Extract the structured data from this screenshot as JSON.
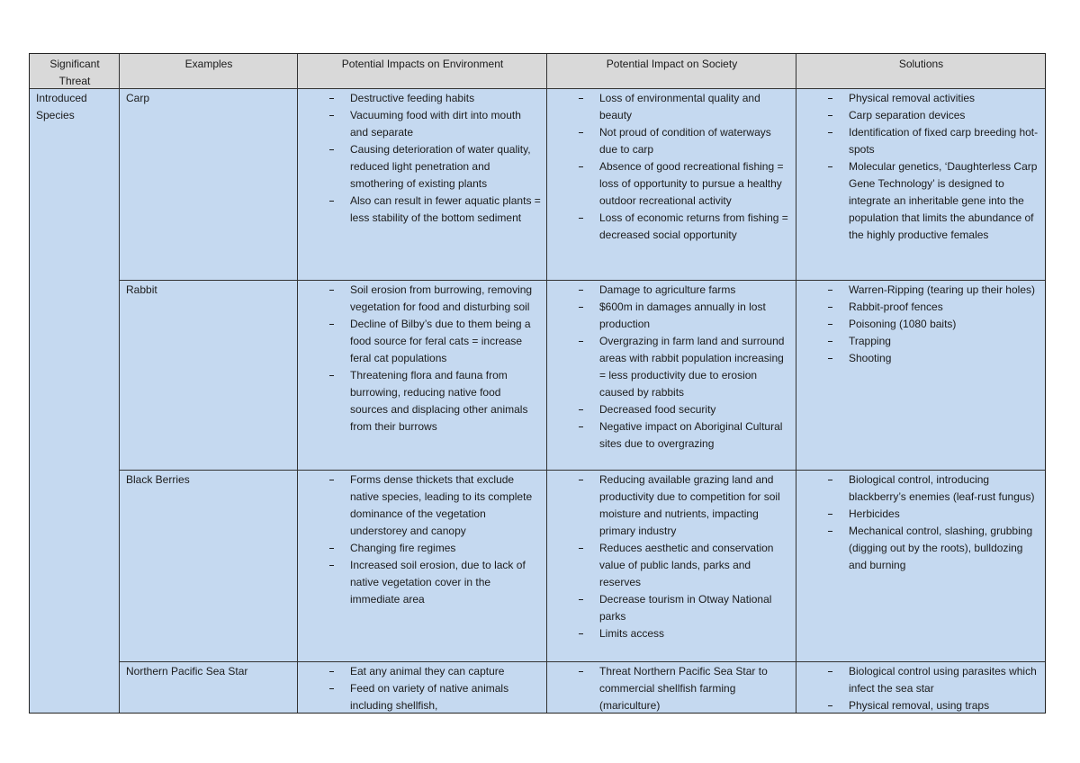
{
  "table": {
    "columns": [
      "Significant Threat",
      "Examples",
      "Potential Impacts on Environment",
      "Potential Impact on Society",
      "Solutions"
    ],
    "threat": "Introduced Species",
    "rows": [
      {
        "example": "Carp",
        "environment": [
          "Destructive feeding habits",
          "Vacuuming food with dirt into mouth and separate",
          "Causing deterioration of water quality, reduced light penetration and smothering of existing plants",
          "Also can result in fewer aquatic plants = less stability of the bottom sediment"
        ],
        "society": [
          "Loss of environmental quality and beauty",
          "Not proud of condition of waterways due to carp",
          "Absence of good recreational fishing = loss of opportunity to pursue a healthy outdoor recreational activity",
          "Loss of economic returns from fishing = decreased social opportunity"
        ],
        "solutions": [
          "Physical removal activities",
          "Carp separation devices",
          "Identification of fixed carp breeding hot-spots",
          "Molecular genetics, ‘Daughterless Carp Gene Technology’ is designed to integrate an inheritable gene into the population that limits the abundance of the highly productive females"
        ]
      },
      {
        "example": "Rabbit",
        "environment": [
          "Soil erosion from burrowing, removing vegetation for food and disturbing soil",
          "Decline of Bilby’s due to them being a food source for feral cats = increase feral cat populations",
          "Threatening flora and fauna from burrowing, reducing native food sources and displacing other animals from their burrows"
        ],
        "society": [
          "Damage to agriculture farms",
          "$600m in damages annually in lost production",
          "Overgrazing in farm land and surround areas with rabbit population increasing = less productivity due to erosion caused by rabbits",
          "Decreased food security",
          "Negative impact on Aboriginal Cultural sites due to overgrazing"
        ],
        "solutions": [
          "Warren-Ripping (tearing up their holes)",
          "Rabbit-proof fences",
          "Poisoning (1080 baits)",
          "Trapping",
          "Shooting"
        ]
      },
      {
        "example": "Black Berries",
        "environment": [
          "Forms dense thickets that exclude native species, leading to its complete dominance of the vegetation understorey and canopy",
          "Changing fire regimes",
          "Increased soil erosion, due to lack of native vegetation cover in the immediate area"
        ],
        "society": [
          "Reducing available grazing land and productivity due to competition for soil moisture and nutrients, impacting primary industry",
          "Reduces aesthetic and conservation value of public lands, parks and reserves",
          "Decrease tourism in Otway National parks",
          "Limits access"
        ],
        "solutions": [
          "Biological control, introducing blackberry’s enemies (leaf-rust fungus)",
          "Herbicides",
          "Mechanical control, slashing, grubbing (digging out by the roots), bulldozing and burning"
        ]
      },
      {
        "example": "Northern Pacific Sea Star",
        "environment": [
          "Eat any animal they can capture",
          "Feed on variety of native animals including shellfish,"
        ],
        "society": [
          "Threat Northern Pacific Sea Star to commercial shellfish farming (mariculture)"
        ],
        "solutions": [
          "Biological control using parasites which infect the sea star",
          "Physical removal, using traps"
        ]
      }
    ]
  }
}
